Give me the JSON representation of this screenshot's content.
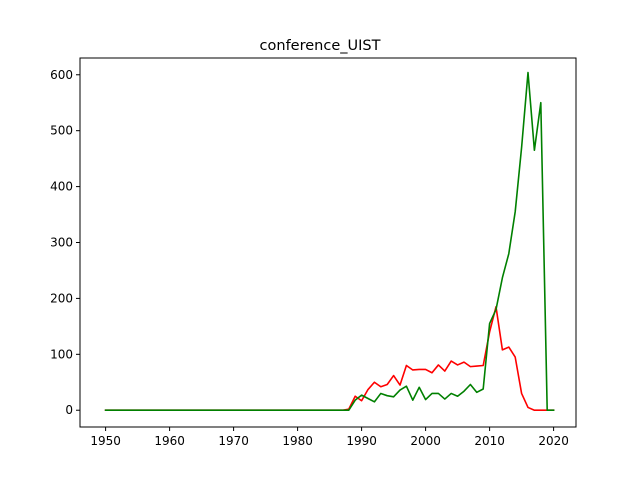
{
  "chart_data": {
    "type": "line",
    "title": "conference_UIST",
    "xlabel": "",
    "ylabel": "",
    "xlim": [
      1946,
      2023.5
    ],
    "ylim": [
      -30,
      630
    ],
    "xticks": [
      1950,
      1960,
      1970,
      1980,
      1990,
      2000,
      2010,
      2020
    ],
    "yticks": [
      0,
      100,
      200,
      300,
      400,
      500,
      600
    ],
    "grid": false,
    "legend": "none",
    "series": [
      {
        "color": "#ff0000",
        "x": [
          1950,
          1951,
          1952,
          1953,
          1954,
          1955,
          1956,
          1957,
          1958,
          1959,
          1960,
          1961,
          1962,
          1963,
          1964,
          1965,
          1966,
          1967,
          1968,
          1969,
          1970,
          1971,
          1972,
          1973,
          1974,
          1975,
          1976,
          1977,
          1978,
          1979,
          1980,
          1981,
          1982,
          1983,
          1984,
          1985,
          1986,
          1987,
          1988,
          1989,
          1990,
          1991,
          1992,
          1993,
          1994,
          1995,
          1996,
          1997,
          1998,
          1999,
          2000,
          2001,
          2002,
          2003,
          2004,
          2005,
          2006,
          2007,
          2008,
          2009,
          2010,
          2011,
          2012,
          2013,
          2014,
          2015,
          2016,
          2017,
          2018,
          2019,
          2020
        ],
        "y": [
          0,
          0,
          0,
          0,
          0,
          0,
          0,
          0,
          0,
          0,
          0,
          0,
          0,
          0,
          0,
          0,
          0,
          0,
          0,
          0,
          0,
          0,
          0,
          0,
          0,
          0,
          0,
          0,
          0,
          0,
          0,
          0,
          0,
          0,
          0,
          0,
          0,
          0,
          2,
          25,
          17,
          37,
          50,
          42,
          46,
          62,
          45,
          80,
          72,
          73,
          73,
          67,
          81,
          70,
          88,
          81,
          86,
          78,
          79,
          80,
          140,
          185,
          108,
          113,
          95,
          30,
          5,
          0,
          0,
          0,
          0
        ]
      },
      {
        "color": "#008000",
        "x": [
          1950,
          1951,
          1952,
          1953,
          1954,
          1955,
          1956,
          1957,
          1958,
          1959,
          1960,
          1961,
          1962,
          1963,
          1964,
          1965,
          1966,
          1967,
          1968,
          1969,
          1970,
          1971,
          1972,
          1973,
          1974,
          1975,
          1976,
          1977,
          1978,
          1979,
          1980,
          1981,
          1982,
          1983,
          1984,
          1985,
          1986,
          1987,
          1988,
          1989,
          1990,
          1991,
          1992,
          1993,
          1994,
          1995,
          1996,
          1997,
          1998,
          1999,
          2000,
          2001,
          2002,
          2003,
          2004,
          2005,
          2006,
          2007,
          2008,
          2009,
          2010,
          2011,
          2012,
          2013,
          2014,
          2015,
          2016,
          2017,
          2018,
          2019,
          2020
        ],
        "y": [
          0,
          0,
          0,
          0,
          0,
          0,
          0,
          0,
          0,
          0,
          0,
          0,
          0,
          0,
          0,
          0,
          0,
          0,
          0,
          0,
          0,
          0,
          0,
          0,
          0,
          0,
          0,
          0,
          0,
          0,
          0,
          0,
          0,
          0,
          0,
          0,
          0,
          0,
          0,
          18,
          27,
          21,
          15,
          30,
          26,
          24,
          36,
          43,
          18,
          41,
          19,
          30,
          30,
          20,
          30,
          25,
          34,
          46,
          32,
          38,
          155,
          180,
          237,
          280,
          355,
          470,
          604,
          465,
          550,
          0,
          0
        ]
      }
    ]
  }
}
